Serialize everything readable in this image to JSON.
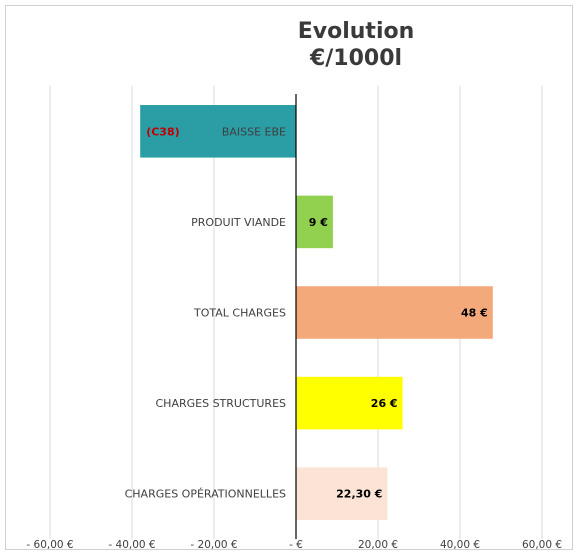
{
  "chart_data": {
    "type": "bar",
    "orientation": "horizontal",
    "title": "Evolution €/1000l",
    "title_lines": [
      "Evolution",
      "€/1000l"
    ],
    "categories": [
      "BAISSE EBE",
      "PRODUIT VIANDE",
      "TOTAL CHARGES",
      "CHARGES STRUCTURES",
      "CHARGES OPÉRATIONNELLES"
    ],
    "values": [
      -38,
      9,
      48,
      26,
      22.3
    ],
    "data_labels": [
      "(C38)",
      "9 €",
      "48 €",
      "26 €",
      "22,30 €"
    ],
    "colors": [
      "#2a9da5",
      "#92d050",
      "#f4a97a",
      "#ffff00",
      "#fbe3d6"
    ],
    "data_label_colors": [
      "#c00000",
      "#000000",
      "#000000",
      "#000000",
      "#000000"
    ],
    "xlim": [
      -60,
      60
    ],
    "x_ticks": [
      -60,
      -40,
      -20,
      0,
      20,
      40,
      60
    ],
    "x_tick_labels": [
      "- 60,00 €",
      "- 40,00 €",
      "- 20,00 €",
      "-  €",
      "20,00 €",
      "40,00 €",
      "60,00 €"
    ],
    "xlabel": "",
    "ylabel": "",
    "grid": true,
    "legend": "none"
  }
}
